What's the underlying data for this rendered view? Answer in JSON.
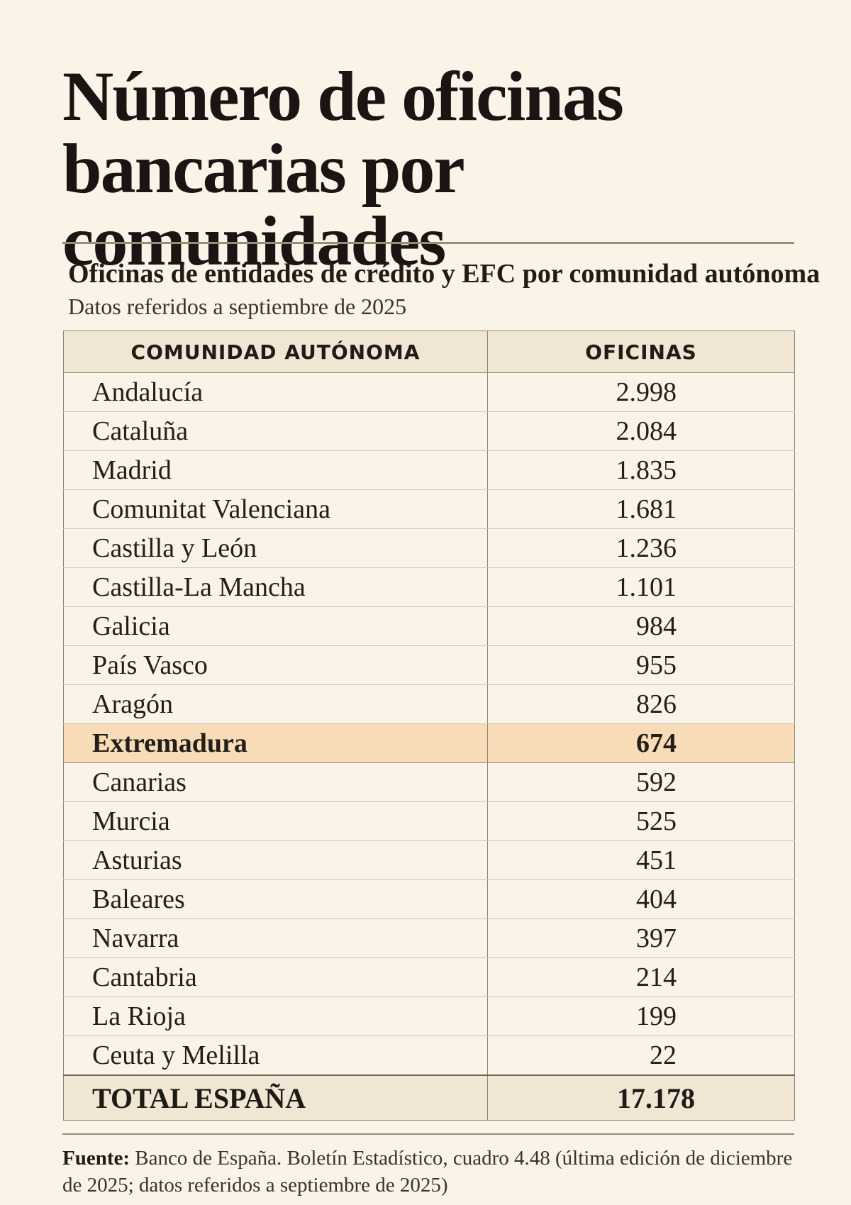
{
  "title": "Número de oficinas bancarias por comunidades",
  "subtitle": "Oficinas de entidades de crédito y EFC por comunidad autónoma",
  "note": "Datos referidos a septiembre de 2025",
  "source": {
    "label": "Fuente:",
    "text": "Banco de España. Boletín Estadístico, cuadro 4.48 (última edición de diciembre de 2025; datos referidos a septiembre de 2025)"
  },
  "chart_data": {
    "type": "table",
    "columns": [
      "COMUNIDAD AUTÓNOMA",
      "OFICINAS"
    ],
    "rows": [
      {
        "label": "Andalucía",
        "display": "2.998",
        "value": 2998
      },
      {
        "label": "Cataluña",
        "display": "2.084",
        "value": 2084
      },
      {
        "label": "Madrid",
        "display": "1.835",
        "value": 1835
      },
      {
        "label": "Comunitat Valenciana",
        "display": "1.681",
        "value": 1681
      },
      {
        "label": "Castilla y León",
        "display": "1.236",
        "value": 1236
      },
      {
        "label": "Castilla-La Mancha",
        "display": "1.101",
        "value": 1101
      },
      {
        "label": "Galicia",
        "display": "984",
        "value": 984
      },
      {
        "label": "País Vasco",
        "display": "955",
        "value": 955
      },
      {
        "label": "Aragón",
        "display": "826",
        "value": 826
      },
      {
        "label": "Extremadura",
        "display": "674",
        "value": 674,
        "highlight": true
      },
      {
        "label": "Canarias",
        "display": "592",
        "value": 592
      },
      {
        "label": "Murcia",
        "display": "525",
        "value": 525
      },
      {
        "label": "Asturias",
        "display": "451",
        "value": 451
      },
      {
        "label": "Baleares",
        "display": "404",
        "value": 404
      },
      {
        "label": "Navarra",
        "display": "397",
        "value": 397
      },
      {
        "label": "Cantabria",
        "display": "214",
        "value": 214
      },
      {
        "label": "La Rioja",
        "display": "199",
        "value": 199
      },
      {
        "label": "Ceuta y Melilla",
        "display": "22",
        "value": 22
      }
    ],
    "total": {
      "label": "TOTAL ESPAÑA",
      "display": "17.178",
      "value": 17178
    },
    "colors": {
      "background": "#faf3e8",
      "header": "#f1e5d4",
      "highlight": "#f8dcb7"
    }
  }
}
